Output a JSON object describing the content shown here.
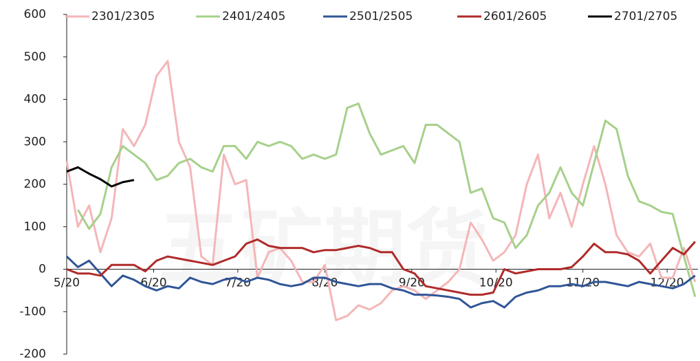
{
  "chart_data": {
    "type": "line",
    "watermark": "五矿期货",
    "legend": "top",
    "x": [
      0,
      4,
      8,
      12,
      16,
      20,
      24,
      28,
      32,
      36,
      40,
      44,
      48,
      52,
      56,
      60,
      64,
      68,
      72,
      76,
      80,
      84,
      88,
      92,
      96,
      100,
      104,
      108,
      112,
      116,
      120,
      124,
      128,
      132,
      136,
      140,
      144,
      148,
      152,
      156,
      160,
      164,
      168,
      172,
      176,
      180,
      184,
      188,
      192,
      196,
      200,
      204,
      208,
      212,
      216,
      220,
      224
    ],
    "xlim": [
      0,
      225
    ],
    "xticks": [
      {
        "value": 0,
        "label": "5/20"
      },
      {
        "value": 31,
        "label": "6/20"
      },
      {
        "value": 61,
        "label": "7/20"
      },
      {
        "value": 92,
        "label": "8/20"
      },
      {
        "value": 123,
        "label": "9/20"
      },
      {
        "value": 153,
        "label": "10/20"
      },
      {
        "value": 184,
        "label": "11/20"
      },
      {
        "value": 214,
        "label": "12/20"
      }
    ],
    "ylim": [
      -200,
      600
    ],
    "yticks": [
      -200,
      -100,
      0,
      100,
      200,
      300,
      400,
      500,
      600
    ],
    "series": [
      {
        "name": "2301/2305",
        "color": "#f4b6b8",
        "values": [
          255,
          100,
          150,
          40,
          120,
          330,
          290,
          340,
          455,
          490,
          300,
          240,
          30,
          10,
          270,
          200,
          210,
          -20,
          40,
          50,
          20,
          -30,
          -30,
          10,
          -120,
          -110,
          -85,
          -95,
          -80,
          -50,
          -40,
          -50,
          -70,
          -50,
          -30,
          0,
          110,
          70,
          20,
          40,
          80,
          200,
          270,
          120,
          180,
          100,
          200,
          290,
          200,
          80,
          40,
          30,
          60,
          -20,
          -20,
          50,
          -30
        ]
      },
      {
        "name": "2401/2405",
        "color": "#a6d08a",
        "values": [
          null,
          140,
          95,
          130,
          240,
          290,
          270,
          250,
          210,
          220,
          250,
          260,
          240,
          230,
          290,
          290,
          260,
          300,
          290,
          300,
          290,
          260,
          270,
          260,
          270,
          380,
          390,
          320,
          270,
          280,
          290,
          250,
          340,
          340,
          320,
          300,
          180,
          190,
          120,
          110,
          50,
          80,
          150,
          180,
          240,
          180,
          150,
          250,
          350,
          330,
          220,
          160,
          150,
          135,
          130,
          30,
          -65
        ]
      },
      {
        "name": "2501/2505",
        "color": "#2f5597",
        "values": [
          30,
          5,
          20,
          -10,
          -40,
          -15,
          -25,
          -40,
          -50,
          -40,
          -45,
          -20,
          -30,
          -35,
          -25,
          -20,
          -30,
          -20,
          -25,
          -35,
          -40,
          -35,
          -20,
          -20,
          -30,
          -35,
          -40,
          -35,
          -35,
          -45,
          -50,
          -60,
          -60,
          -62,
          -65,
          -70,
          -90,
          -80,
          -75,
          -90,
          -65,
          -55,
          -50,
          -40,
          -40,
          -35,
          -40,
          -30,
          -30,
          -35,
          -40,
          -30,
          -35,
          -40,
          -45,
          -35,
          -15
        ]
      },
      {
        "name": "2601/2605",
        "color": "#b02a2a",
        "values": [
          0,
          -10,
          -10,
          -15,
          10,
          10,
          10,
          -5,
          20,
          30,
          25,
          20,
          15,
          10,
          20,
          30,
          60,
          70,
          55,
          50,
          50,
          50,
          40,
          45,
          45,
          50,
          55,
          50,
          40,
          40,
          0,
          -10,
          -40,
          -45,
          -50,
          -55,
          -60,
          -60,
          -55,
          0,
          -10,
          -5,
          0,
          0,
          0,
          5,
          30,
          60,
          40,
          40,
          35,
          20,
          -10,
          20,
          50,
          35,
          65
        ]
      },
      {
        "name": "2701/2705",
        "color": "#000000",
        "values": [
          230,
          240,
          225,
          212,
          195,
          205,
          210,
          null,
          null,
          null,
          null,
          null,
          null,
          null,
          null,
          null,
          null,
          null,
          null,
          null,
          null,
          null,
          null,
          null,
          null,
          null,
          null,
          null,
          null,
          null,
          null,
          null,
          null,
          null,
          null,
          null,
          null,
          null,
          null,
          null,
          null,
          null,
          null,
          null,
          null,
          null,
          null,
          null,
          null,
          null,
          null,
          null,
          null,
          null,
          null,
          null,
          null
        ]
      }
    ]
  }
}
